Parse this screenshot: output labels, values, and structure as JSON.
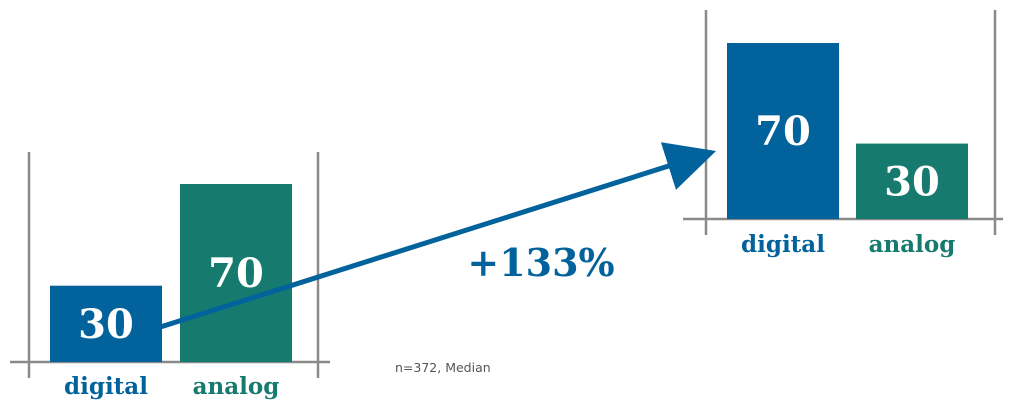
{
  "chart_data": [
    {
      "type": "bar",
      "categories": [
        "digital",
        "analog"
      ],
      "values": [
        30,
        70
      ],
      "ylim": [
        0,
        100
      ]
    },
    {
      "type": "bar",
      "categories": [
        "digital",
        "analog"
      ],
      "values": [
        70,
        30
      ],
      "ylim": [
        0,
        100
      ]
    }
  ],
  "change_label": "+133%",
  "note": "n=372, Median",
  "colors": {
    "digital": "#02639c",
    "analog": "#167a6e",
    "axis": "#8a8a8a",
    "arrow": "#02639c"
  }
}
